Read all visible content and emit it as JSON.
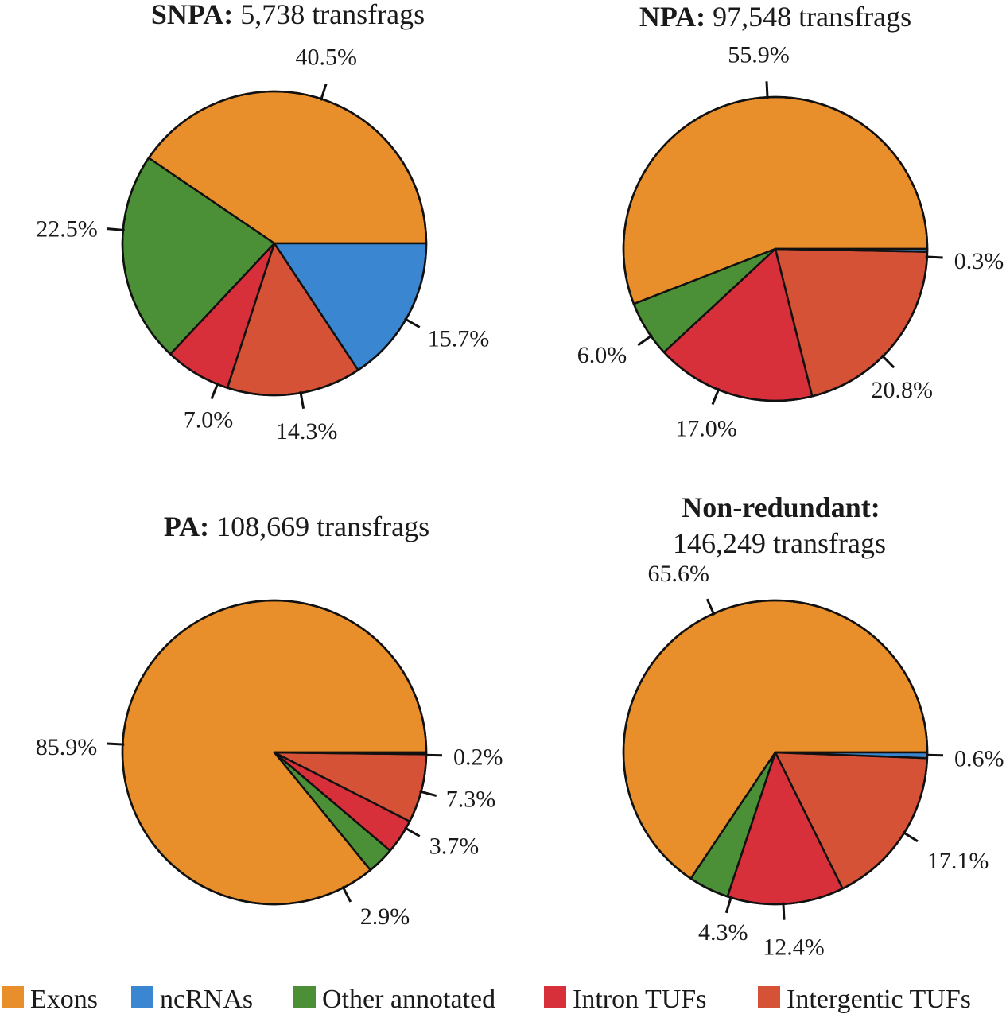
{
  "chart_data": [
    {
      "type": "pie",
      "title_bold": "SNPA:",
      "title_rest": "5,738 transfrags",
      "slices": [
        {
          "category": "Exons",
          "value": 40.5,
          "label": "40.5%"
        },
        {
          "category": "Other annotated",
          "value": 22.5,
          "label": "22.5%"
        },
        {
          "category": "Intron TUFs",
          "value": 7.0,
          "label": "7.0%"
        },
        {
          "category": "Intergentic TUFs",
          "value": 14.3,
          "label": "14.3%"
        },
        {
          "category": "ncRNAs",
          "value": 15.7,
          "label": "15.7%"
        }
      ]
    },
    {
      "type": "pie",
      "title_bold": "NPA:",
      "title_rest": "97,548 transfrags",
      "slices": [
        {
          "category": "Exons",
          "value": 55.9,
          "label": "55.9%"
        },
        {
          "category": "Other annotated",
          "value": 6.0,
          "label": "6.0%"
        },
        {
          "category": "Intron TUFs",
          "value": 17.0,
          "label": "17.0%"
        },
        {
          "category": "Intergentic TUFs",
          "value": 20.8,
          "label": "20.8%"
        },
        {
          "category": "ncRNAs",
          "value": 0.3,
          "label": "0.3%"
        }
      ]
    },
    {
      "type": "pie",
      "title_bold": "PA:",
      "title_rest": "108,669 transfrags",
      "slices": [
        {
          "category": "Exons",
          "value": 85.9,
          "label": "85.9%"
        },
        {
          "category": "Other annotated",
          "value": 2.9,
          "label": "2.9%"
        },
        {
          "category": "Intron TUFs",
          "value": 3.7,
          "label": "3.7%"
        },
        {
          "category": "Intergentic TUFs",
          "value": 7.3,
          "label": "7.3%"
        },
        {
          "category": "ncRNAs",
          "value": 0.2,
          "label": "0.2%"
        }
      ]
    },
    {
      "type": "pie",
      "title_bold": "Non-redundant:",
      "title_rest": "146,249 transfrags",
      "slices": [
        {
          "category": "Exons",
          "value": 65.6,
          "label": "65.6%"
        },
        {
          "category": "Other annotated",
          "value": 4.3,
          "label": "4.3%"
        },
        {
          "category": "Intron TUFs",
          "value": 12.4,
          "label": "12.4%"
        },
        {
          "category": "Intergentic TUFs",
          "value": 17.1,
          "label": "17.1%"
        },
        {
          "category": "ncRNAs",
          "value": 0.6,
          "label": "0.6%"
        }
      ]
    }
  ],
  "legend": [
    {
      "label": "Exons",
      "color": "#e88f2c"
    },
    {
      "label": "ncRNAs",
      "color": "#3a86d0"
    },
    {
      "label": "Other annotated",
      "color": "#4b9037"
    },
    {
      "label": "Intron TUFs",
      "color": "#d8303a"
    },
    {
      "label": "Intergentic TUFs",
      "color": "#d65237"
    }
  ]
}
